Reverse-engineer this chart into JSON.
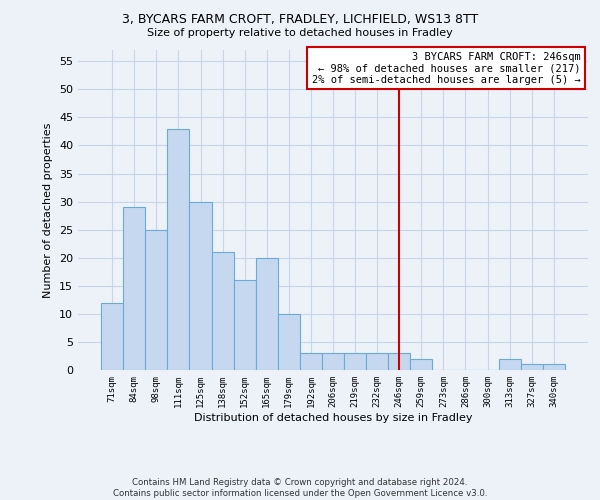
{
  "title": "3, BYCARS FARM CROFT, FRADLEY, LICHFIELD, WS13 8TT",
  "subtitle": "Size of property relative to detached houses in Fradley",
  "xlabel": "Distribution of detached houses by size in Fradley",
  "ylabel": "Number of detached properties",
  "categories": [
    "71sqm",
    "84sqm",
    "98sqm",
    "111sqm",
    "125sqm",
    "138sqm",
    "152sqm",
    "165sqm",
    "179sqm",
    "192sqm",
    "206sqm",
    "219sqm",
    "232sqm",
    "246sqm",
    "259sqm",
    "273sqm",
    "286sqm",
    "300sqm",
    "313sqm",
    "327sqm",
    "340sqm"
  ],
  "values": [
    12,
    29,
    25,
    43,
    30,
    21,
    16,
    20,
    10,
    3,
    3,
    3,
    3,
    3,
    2,
    0,
    0,
    0,
    2,
    1,
    1
  ],
  "bar_color": "#c5d8f0",
  "bar_edge_color": "#6aaad4",
  "background_color": "#edf2f9",
  "grid_color": "#c8d4e8",
  "vline_x": 13,
  "vline_color": "#cc0000",
  "annotation_text": "3 BYCARS FARM CROFT: 246sqm\n← 98% of detached houses are smaller (217)\n2% of semi-detached houses are larger (5) →",
  "annotation_box_color": "#ffffff",
  "annotation_box_edge": "#cc0000",
  "ylim": [
    0,
    57
  ],
  "yticks": [
    0,
    5,
    10,
    15,
    20,
    25,
    30,
    35,
    40,
    45,
    50,
    55
  ],
  "footer": "Contains HM Land Registry data © Crown copyright and database right 2024.\nContains public sector information licensed under the Open Government Licence v3.0."
}
